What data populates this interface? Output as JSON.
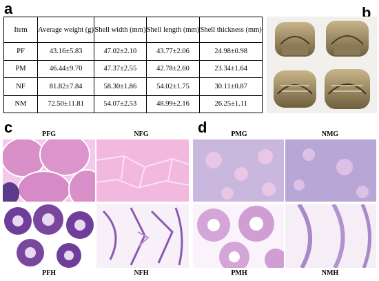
{
  "panels": {
    "a": "a",
    "b": "b",
    "c": "c",
    "d": "d"
  },
  "table": {
    "headers": [
      "Item",
      "Average weight (g)",
      "Shell width (mm)",
      "Shell length (mm)",
      "Shell thickness (mm)"
    ],
    "rows": [
      [
        "PF",
        "43.16±5.83",
        "47.02±2.10",
        "43.77±2.06",
        "24.98±0.98"
      ],
      [
        "PM",
        "46.44±9.70",
        "47.37±2.55",
        "42.78±2.60",
        "23.34±1.64"
      ],
      [
        "NF",
        "81.82±7.84",
        "58.30±1.86",
        "54.02±1.75",
        "30.11±0.87"
      ],
      [
        "NM",
        "72.50±11.81",
        "54.07±2.53",
        "48.99±2.16",
        "26.25±1.11"
      ]
    ]
  },
  "micrographs": {
    "PFG": "PFG",
    "NFG": "NFG",
    "PFH": "PFH",
    "NFH": "NFH",
    "PMG": "PMG",
    "NMG": "NMG",
    "PMH": "PMH",
    "NMH": "NMH"
  },
  "colors": {
    "ovary_tissue": "#d98fc8",
    "ovary_bg": "#f3c8ea",
    "hep_purple": "#6f3d9a",
    "hep_bg": "#ffffff",
    "testis_bg": "#c9b7de",
    "photo_bg": "#f2f0ec"
  }
}
